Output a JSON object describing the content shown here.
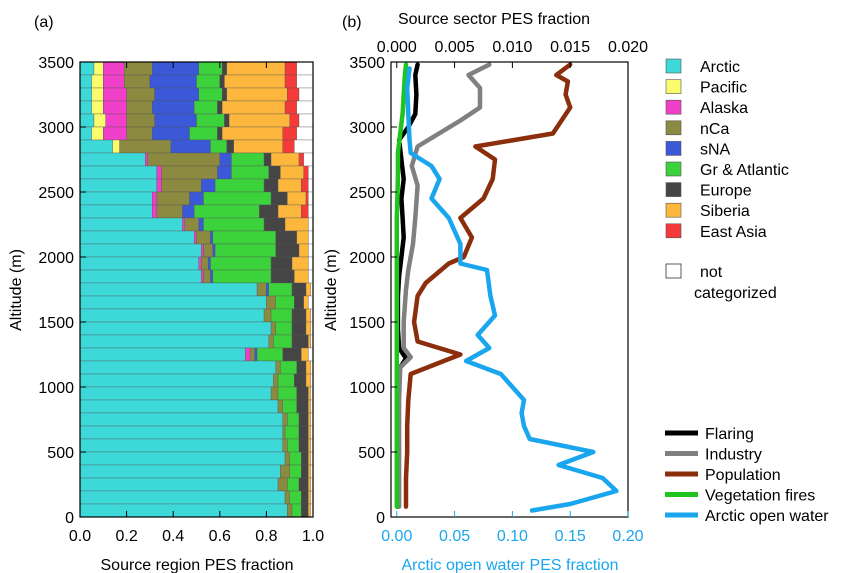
{
  "panel_a_label": "(a)",
  "panel_b_label": "(b)",
  "colors": {
    "Arctic": "#3dd8d8",
    "Pacific": "#fbfb6e",
    "Alaska": "#f03fc8",
    "nCa": "#8b8a40",
    "sNA": "#3a58d8",
    "Gr & Atlantic": "#3cd23c",
    "Europe": "#454545",
    "Siberia": "#fdb73d",
    "East Asia": "#f53a3a",
    "not categorized": "#ffffff",
    "Flaring": "#000000",
    "Industry": "#808080",
    "Population": "#8b2e0b",
    "Vegetation fires": "#1fc41f",
    "Arctic open water": "#1aa6ee"
  },
  "chart_data": [
    {
      "type": "bar",
      "orientation": "horizontal-stacked",
      "xlabel": "Source region PES fraction",
      "ylabel": "Altitude (m)",
      "xlim": [
        0,
        1
      ],
      "ylim": [
        0,
        3500
      ],
      "xticks": [
        "0.0",
        "0.2",
        "0.4",
        "0.6",
        "0.8",
        "1.0"
      ],
      "yticks": [
        "0",
        "500",
        "1000",
        "1500",
        "2000",
        "2500",
        "3000",
        "3500"
      ],
      "categories": [
        "Arctic",
        "Pacific",
        "Alaska",
        "nCa",
        "sNA",
        "Gr & Atlantic",
        "Europe",
        "Siberia",
        "East Asia",
        "not categorized"
      ],
      "legend_position": "right",
      "profiles": [
        {
          "alt": 3450,
          "f": [
            0.06,
            0.04,
            0.09,
            0.12,
            0.2,
            0.1,
            0.02,
            0.25,
            0.05,
            0.07
          ]
        },
        {
          "alt": 3350,
          "f": [
            0.05,
            0.05,
            0.09,
            0.11,
            0.2,
            0.1,
            0.02,
            0.26,
            0.05,
            0.07
          ]
        },
        {
          "alt": 3250,
          "f": [
            0.05,
            0.05,
            0.1,
            0.12,
            0.19,
            0.1,
            0.02,
            0.26,
            0.05,
            0.06
          ]
        },
        {
          "alt": 3150,
          "f": [
            0.05,
            0.05,
            0.1,
            0.11,
            0.18,
            0.1,
            0.02,
            0.27,
            0.05,
            0.07
          ]
        },
        {
          "alt": 3050,
          "f": [
            0.06,
            0.05,
            0.09,
            0.12,
            0.18,
            0.12,
            0.02,
            0.26,
            0.04,
            0.06
          ]
        },
        {
          "alt": 2950,
          "f": [
            0.05,
            0.05,
            0.1,
            0.11,
            0.16,
            0.12,
            0.02,
            0.26,
            0.06,
            0.07
          ]
        },
        {
          "alt": 2850,
          "f": [
            0.14,
            0.03,
            0.0,
            0.22,
            0.17,
            0.07,
            0.03,
            0.21,
            0.05,
            0.08
          ]
        },
        {
          "alt": 2750,
          "f": [
            0.28,
            0.0,
            0.01,
            0.31,
            0.05,
            0.14,
            0.03,
            0.12,
            0.02,
            0.04
          ]
        },
        {
          "alt": 2650,
          "f": [
            0.33,
            0.0,
            0.02,
            0.24,
            0.06,
            0.16,
            0.05,
            0.1,
            0.02,
            0.02
          ]
        },
        {
          "alt": 2550,
          "f": [
            0.33,
            0.0,
            0.02,
            0.17,
            0.06,
            0.21,
            0.06,
            0.1,
            0.03,
            0.02
          ]
        },
        {
          "alt": 2450,
          "f": [
            0.31,
            0.0,
            0.02,
            0.14,
            0.06,
            0.29,
            0.07,
            0.08,
            0.01,
            0.02
          ]
        },
        {
          "alt": 2350,
          "f": [
            0.31,
            0.0,
            0.02,
            0.11,
            0.05,
            0.28,
            0.08,
            0.1,
            0.03,
            0.02
          ]
        },
        {
          "alt": 2250,
          "f": [
            0.44,
            0.0,
            0.01,
            0.06,
            0.02,
            0.26,
            0.09,
            0.1,
            0.0,
            0.02
          ]
        },
        {
          "alt": 2150,
          "f": [
            0.49,
            0.0,
            0.01,
            0.06,
            0.01,
            0.27,
            0.09,
            0.05,
            0.0,
            0.02
          ]
        },
        {
          "alt": 2050,
          "f": [
            0.52,
            0.0,
            0.01,
            0.04,
            0.01,
            0.26,
            0.1,
            0.04,
            0.0,
            0.02
          ]
        },
        {
          "alt": 1950,
          "f": [
            0.51,
            0.0,
            0.01,
            0.03,
            0.01,
            0.26,
            0.09,
            0.07,
            0.0,
            0.02
          ]
        },
        {
          "alt": 1850,
          "f": [
            0.52,
            0.0,
            0.01,
            0.03,
            0.01,
            0.25,
            0.1,
            0.06,
            0.0,
            0.02
          ]
        },
        {
          "alt": 1750,
          "f": [
            0.76,
            0.0,
            0.0,
            0.04,
            0.01,
            0.1,
            0.06,
            0.02,
            0.0,
            0.01
          ]
        },
        {
          "alt": 1650,
          "f": [
            0.8,
            0.0,
            0.0,
            0.04,
            0.0,
            0.08,
            0.04,
            0.02,
            0.0,
            0.02
          ]
        },
        {
          "alt": 1550,
          "f": [
            0.79,
            0.0,
            0.0,
            0.03,
            0.0,
            0.09,
            0.06,
            0.02,
            0.0,
            0.01
          ]
        },
        {
          "alt": 1450,
          "f": [
            0.82,
            0.0,
            0.0,
            0.02,
            0.0,
            0.07,
            0.06,
            0.02,
            0.0,
            0.01
          ]
        },
        {
          "alt": 1350,
          "f": [
            0.81,
            0.0,
            0.0,
            0.02,
            0.0,
            0.08,
            0.07,
            0.01,
            0.0,
            0.01
          ]
        },
        {
          "alt": 1250,
          "f": [
            0.71,
            0.0,
            0.02,
            0.02,
            0.01,
            0.11,
            0.08,
            0.03,
            0.0,
            0.02
          ]
        },
        {
          "alt": 1150,
          "f": [
            0.84,
            0.0,
            0.0,
            0.02,
            0.0,
            0.07,
            0.04,
            0.02,
            0.0,
            0.01
          ]
        },
        {
          "alt": 1050,
          "f": [
            0.83,
            0.0,
            0.0,
            0.02,
            0.0,
            0.07,
            0.05,
            0.02,
            0.0,
            0.01
          ]
        },
        {
          "alt": 950,
          "f": [
            0.82,
            0.0,
            0.0,
            0.03,
            0.0,
            0.08,
            0.05,
            0.01,
            0.0,
            0.01
          ]
        },
        {
          "alt": 850,
          "f": [
            0.85,
            0.0,
            0.0,
            0.02,
            0.0,
            0.06,
            0.05,
            0.01,
            0.0,
            0.01
          ]
        },
        {
          "alt": 750,
          "f": [
            0.87,
            0.0,
            0.0,
            0.02,
            0.0,
            0.05,
            0.04,
            0.01,
            0.0,
            0.01
          ]
        },
        {
          "alt": 650,
          "f": [
            0.87,
            0.0,
            0.0,
            0.01,
            0.0,
            0.06,
            0.04,
            0.01,
            0.0,
            0.01
          ]
        },
        {
          "alt": 550,
          "f": [
            0.87,
            0.0,
            0.0,
            0.02,
            0.0,
            0.05,
            0.04,
            0.01,
            0.0,
            0.01
          ]
        },
        {
          "alt": 450,
          "f": [
            0.88,
            0.0,
            0.0,
            0.02,
            0.0,
            0.05,
            0.03,
            0.01,
            0.0,
            0.01
          ]
        },
        {
          "alt": 350,
          "f": [
            0.86,
            0.0,
            0.0,
            0.04,
            0.0,
            0.05,
            0.03,
            0.01,
            0.0,
            0.01
          ]
        },
        {
          "alt": 250,
          "f": [
            0.85,
            0.0,
            0.0,
            0.04,
            0.0,
            0.05,
            0.04,
            0.01,
            0.0,
            0.01
          ]
        },
        {
          "alt": 150,
          "f": [
            0.88,
            0.0,
            0.0,
            0.02,
            0.0,
            0.05,
            0.03,
            0.01,
            0.0,
            0.01
          ]
        },
        {
          "alt": 50,
          "f": [
            0.89,
            0.0,
            0.0,
            0.02,
            0.0,
            0.04,
            0.03,
            0.01,
            0.0,
            0.01
          ]
        }
      ]
    },
    {
      "type": "line",
      "xlabel_top": "Source sector PES fraction",
      "xlabel_bottom": "Arctic open water PES fraction",
      "ylabel": "Altitude (m)",
      "xlim_top": [
        -0.0005,
        0.02
      ],
      "xlim_bottom": [
        -0.005,
        0.2
      ],
      "ylim": [
        0,
        3500
      ],
      "xticks_top": [
        "0.000",
        "0.005",
        "0.010",
        "0.015",
        "0.020"
      ],
      "xticks_bottom": [
        "0.00",
        "0.05",
        "0.10",
        "0.15",
        "0.20"
      ],
      "yticks": [
        "0",
        "500",
        "1000",
        "1500",
        "2000",
        "2500",
        "3000",
        "3500"
      ],
      "legend_position": "bottom-right",
      "series": [
        {
          "name": "Flaring",
          "axis": "top",
          "points": [
            [
              0.0018,
              3480
            ],
            [
              0.0016,
              3400
            ],
            [
              0.0017,
              3250
            ],
            [
              0.0016,
              3100
            ],
            [
              0.001,
              3000
            ],
            [
              0.0002,
              2900
            ],
            [
              0.0004,
              2750
            ],
            [
              0.0006,
              2600
            ],
            [
              0.0004,
              2450
            ],
            [
              0.0005,
              2300
            ],
            [
              0.0006,
              2150
            ],
            [
              0.0004,
              2000
            ],
            [
              0.0002,
              1850
            ],
            [
              0.0001,
              1700
            ],
            [
              0.0001,
              1450
            ],
            [
              0.0002,
              1300
            ],
            [
              0.0008,
              1220
            ],
            [
              0.0003,
              1150
            ],
            [
              0.0001,
              1000
            ],
            [
              0.0001,
              700
            ],
            [
              0.0001,
              400
            ],
            [
              0.0001,
              80
            ]
          ]
        },
        {
          "name": "Industry",
          "axis": "top",
          "points": [
            [
              0.008,
              3480
            ],
            [
              0.0062,
              3400
            ],
            [
              0.0072,
              3300
            ],
            [
              0.0072,
              3150
            ],
            [
              0.0055,
              3050
            ],
            [
              0.0018,
              2850
            ],
            [
              0.0013,
              2700
            ],
            [
              0.0018,
              2550
            ],
            [
              0.0016,
              2300
            ],
            [
              0.0014,
              2100
            ],
            [
              0.001,
              1900
            ],
            [
              0.0008,
              1750
            ],
            [
              0.0006,
              1500
            ],
            [
              0.0006,
              1300
            ],
            [
              0.0012,
              1230
            ],
            [
              0.0003,
              1150
            ],
            [
              0.0002,
              900
            ],
            [
              0.0002,
              600
            ],
            [
              0.0002,
              300
            ],
            [
              0.0002,
              80
            ]
          ]
        },
        {
          "name": "Population",
          "axis": "top",
          "points": [
            [
              0.015,
              3480
            ],
            [
              0.0138,
              3400
            ],
            [
              0.0148,
              3350
            ],
            [
              0.0146,
              3250
            ],
            [
              0.015,
              3150
            ],
            [
              0.0135,
              2950
            ],
            [
              0.0068,
              2850
            ],
            [
              0.0085,
              2750
            ],
            [
              0.0083,
              2600
            ],
            [
              0.0075,
              2450
            ],
            [
              0.0055,
              2300
            ],
            [
              0.0065,
              2150
            ],
            [
              0.0058,
              2000
            ],
            [
              0.0045,
              1950
            ],
            [
              0.0025,
              1800
            ],
            [
              0.0018,
              1700
            ],
            [
              0.0015,
              1500
            ],
            [
              0.0018,
              1350
            ],
            [
              0.0055,
              1250
            ],
            [
              0.0012,
              1100
            ],
            [
              0.001,
              900
            ],
            [
              0.0009,
              700
            ],
            [
              0.0009,
              500
            ],
            [
              0.0008,
              300
            ],
            [
              0.0008,
              80
            ]
          ]
        },
        {
          "name": "Vegetation fires",
          "axis": "top",
          "points": [
            [
              0.0008,
              3480
            ],
            [
              0.0007,
              3400
            ],
            [
              0.0006,
              3250
            ],
            [
              0.0005,
              3100
            ],
            [
              0.0003,
              2950
            ],
            [
              0.0001,
              2800
            ],
            [
              0.0001,
              2600
            ],
            [
              0.0,
              2300
            ],
            [
              0.0,
              2000
            ],
            [
              0.0,
              1600
            ],
            [
              0.0,
              1200
            ],
            [
              0.0,
              800
            ],
            [
              0.0,
              400
            ],
            [
              0.0,
              80
            ]
          ]
        },
        {
          "name": "Arctic open water",
          "axis": "bottom",
          "points": [
            [
              0.011,
              3450
            ],
            [
              0.009,
              3300
            ],
            [
              0.01,
              3100
            ],
            [
              0.011,
              2900
            ],
            [
              0.012,
              2800
            ],
            [
              0.03,
              2700
            ],
            [
              0.037,
              2600
            ],
            [
              0.03,
              2450
            ],
            [
              0.045,
              2300
            ],
            [
              0.055,
              2100
            ],
            [
              0.055,
              1950
            ],
            [
              0.078,
              1900
            ],
            [
              0.081,
              1700
            ],
            [
              0.085,
              1550
            ],
            [
              0.07,
              1400
            ],
            [
              0.08,
              1300
            ],
            [
              0.06,
              1200
            ],
            [
              0.09,
              1100
            ],
            [
              0.1,
              1000
            ],
            [
              0.11,
              900
            ],
            [
              0.108,
              800
            ],
            [
              0.11,
              700
            ],
            [
              0.115,
              600
            ],
            [
              0.17,
              500
            ],
            [
              0.14,
              400
            ],
            [
              0.178,
              300
            ],
            [
              0.19,
              200
            ],
            [
              0.15,
              100
            ],
            [
              0.117,
              50
            ]
          ]
        }
      ]
    }
  ],
  "legend_a": {
    "items": [
      "Arctic",
      "Pacific",
      "Alaska",
      "nCa",
      "sNA",
      "Gr & Atlantic",
      "Europe",
      "Siberia",
      "East Asia"
    ],
    "not_categorized_line1": "not",
    "not_categorized_line2": "categorized"
  },
  "legend_b": {
    "items": [
      "Flaring",
      "Industry",
      "Population",
      "Vegetation fires",
      "Arctic open water"
    ]
  }
}
